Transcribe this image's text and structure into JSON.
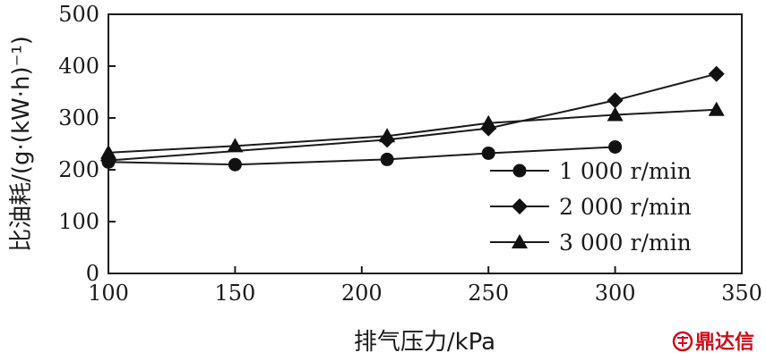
{
  "chart_data": {
    "type": "line",
    "title": "",
    "xlabel": "排气压力/kPa",
    "ylabel": "比油耗/(g·(kW·h)⁻¹)",
    "xlim": [
      100,
      350
    ],
    "ylim": [
      0,
      500
    ],
    "xticks": [
      100,
      150,
      200,
      250,
      300,
      350
    ],
    "yticks": [
      0,
      100,
      200,
      300,
      400,
      500
    ],
    "grid": false,
    "legend_position": "bottom-right",
    "series": [
      {
        "name": "1 000 r/min",
        "marker": "circle",
        "points": [
          [
            100,
            215
          ],
          [
            150,
            210
          ],
          [
            210,
            220
          ],
          [
            250,
            232
          ],
          [
            300,
            244
          ]
        ]
      },
      {
        "name": "2 000 r/min",
        "marker": "diamond",
        "points": [
          [
            100,
            218
          ],
          [
            210,
            258
          ],
          [
            250,
            280
          ],
          [
            300,
            334
          ],
          [
            340,
            385
          ]
        ]
      },
      {
        "name": "3 000 r/min",
        "marker": "triangle",
        "points": [
          [
            100,
            233
          ],
          [
            150,
            246
          ],
          [
            210,
            265
          ],
          [
            250,
            290
          ],
          [
            300,
            306
          ],
          [
            340,
            316
          ]
        ]
      }
    ]
  },
  "watermark": {
    "text": "鼎达信",
    "color": "#c8101c"
  }
}
